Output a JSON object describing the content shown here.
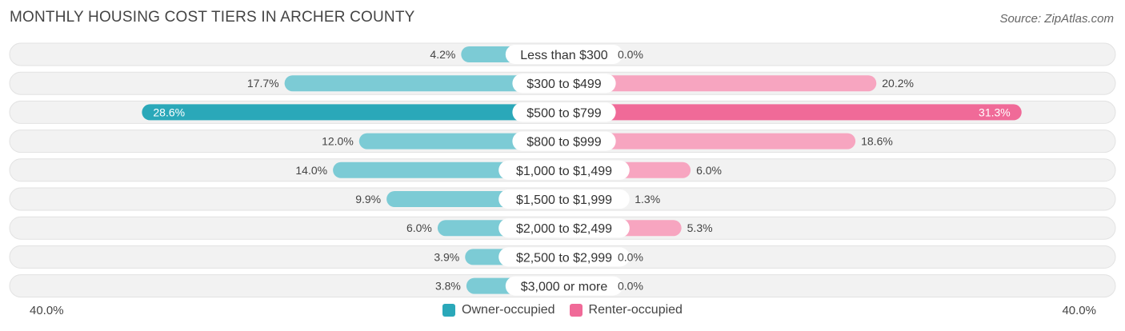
{
  "title": "MONTHLY HOUSING COST TIERS IN ARCHER COUNTY",
  "source": "Source: ZipAtlas.com",
  "colors": {
    "owner": "#7ccbd5",
    "owner_strong": "#2aa8b9",
    "renter": "#f7a5c0",
    "renter_strong": "#f06a98",
    "track": "#f0f0f0",
    "text": "#444444"
  },
  "chart_data": {
    "type": "bar",
    "orientation": "diverging-horizontal",
    "title": "MONTHLY HOUSING COST TIERS IN ARCHER COUNTY",
    "categories": [
      "Less than $300",
      "$300 to $499",
      "$500 to $799",
      "$800 to $999",
      "$1,000 to $1,499",
      "$1,500 to $1,999",
      "$2,000 to $2,499",
      "$2,500 to $2,999",
      "$3,000 or more"
    ],
    "series": [
      {
        "name": "Owner-occupied",
        "values": [
          4.2,
          17.7,
          28.6,
          12.0,
          14.0,
          9.9,
          6.0,
          3.9,
          3.8
        ]
      },
      {
        "name": "Renter-occupied",
        "values": [
          0.0,
          20.2,
          31.3,
          18.6,
          6.0,
          1.3,
          5.3,
          0.0,
          0.0
        ]
      }
    ],
    "value_labels": {
      "owner": [
        "4.2%",
        "17.7%",
        "28.6%",
        "12.0%",
        "14.0%",
        "9.9%",
        "6.0%",
        "3.9%",
        "3.8%"
      ],
      "renter": [
        "0.0%",
        "20.2%",
        "31.3%",
        "18.6%",
        "6.0%",
        "1.3%",
        "5.3%",
        "0.0%",
        "0.0%"
      ]
    },
    "xlim": [
      -40,
      40
    ],
    "axis_labels": {
      "left": "40.0%",
      "right": "40.0%"
    },
    "legend": [
      "Owner-occupied",
      "Renter-occupied"
    ]
  }
}
